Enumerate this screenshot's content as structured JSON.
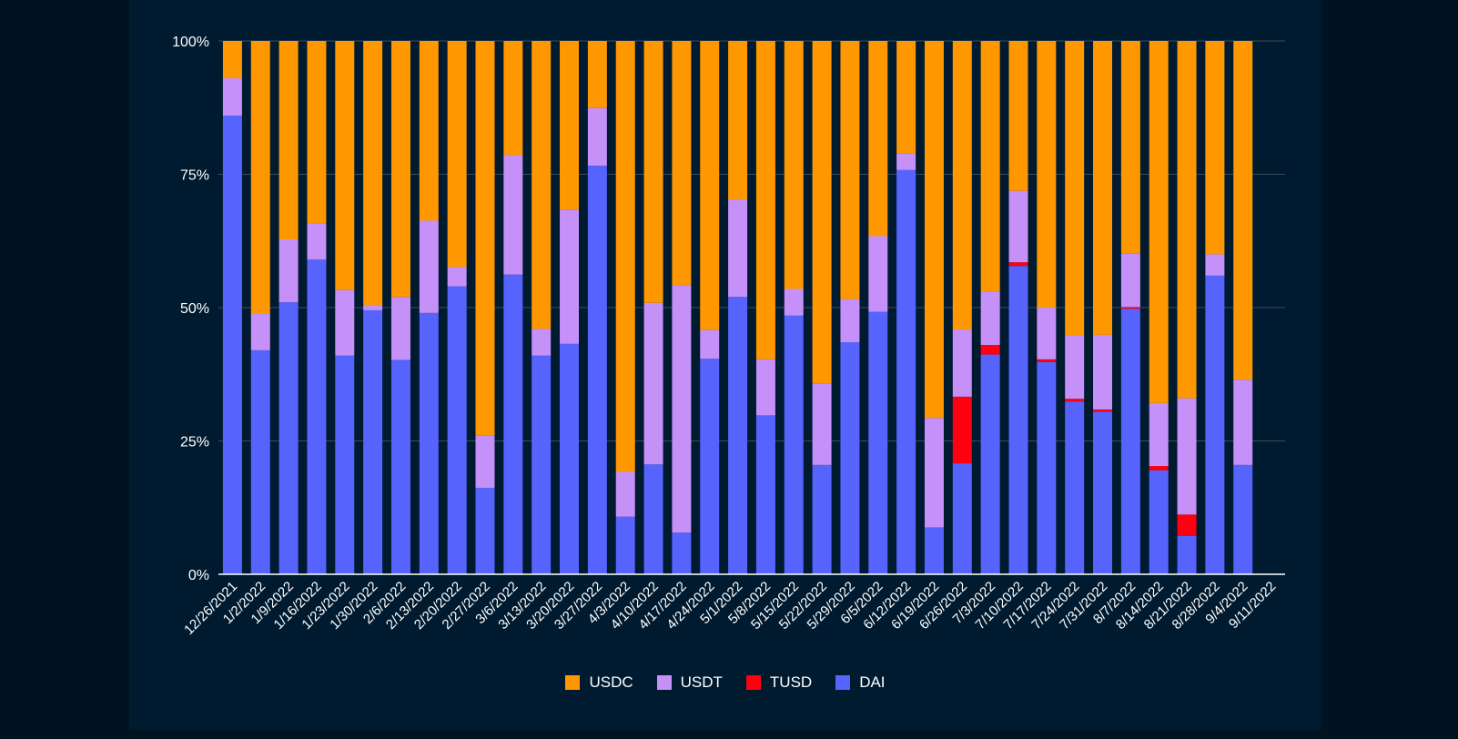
{
  "chart_data": {
    "type": "bar",
    "stacked": true,
    "normalized": true,
    "title": "",
    "xlabel": "",
    "ylabel": "",
    "ylim": [
      0,
      100
    ],
    "y_ticks": [
      0,
      25,
      50,
      75,
      100
    ],
    "y_tick_labels": [
      "0%",
      "25%",
      "50%",
      "75%",
      "100%"
    ],
    "grid": true,
    "legend_position": "bottom",
    "categories": [
      "12/26/2021",
      "1/2/2022",
      "1/9/2022",
      "1/16/2022",
      "1/23/2022",
      "1/30/2022",
      "2/6/2022",
      "2/13/2022",
      "2/20/2022",
      "2/27/2022",
      "3/6/2022",
      "3/13/2022",
      "3/20/2022",
      "3/27/2022",
      "4/3/2022",
      "4/10/2022",
      "4/17/2022",
      "4/24/2022",
      "5/1/2022",
      "5/8/2022",
      "5/15/2022",
      "5/22/2022",
      "5/29/2022",
      "6/5/2022",
      "6/12/2022",
      "6/19/2022",
      "6/26/2022",
      "7/3/2022",
      "7/10/2022",
      "7/17/2022",
      "7/24/2022",
      "7/31/2022",
      "8/7/2022",
      "8/14/2022",
      "8/21/2022",
      "8/28/2022",
      "9/4/2022",
      "9/11/2022"
    ],
    "series": [
      {
        "name": "DAI",
        "color": "#5664fd",
        "values": [
          86,
          42,
          51,
          59,
          41,
          49.5,
          40.2,
          49,
          54,
          16.2,
          56.2,
          41,
          43.2,
          76.6,
          10.8,
          20.6,
          7.8,
          40.4,
          52,
          29.8,
          48.5,
          20.5,
          43.5,
          49.2,
          75.8,
          8.8,
          20.8,
          41.2,
          57.8,
          39.8,
          32.4,
          30.5,
          49.8,
          19.5,
          7.2,
          56,
          20.5,
          0
        ]
      },
      {
        "name": "TUSD",
        "color": "#ff0010",
        "values": [
          0,
          0,
          0,
          0,
          0,
          0,
          0,
          0,
          0,
          0,
          0,
          0,
          0,
          0,
          0,
          0,
          0,
          0,
          0,
          0,
          0,
          0,
          0,
          0,
          0,
          0,
          12.5,
          1.8,
          0.7,
          0.5,
          0.5,
          0.4,
          0.3,
          0.8,
          4,
          0,
          0,
          0
        ]
      },
      {
        "name": "USDT",
        "color": "#c591f9",
        "values": [
          7,
          6.8,
          11.8,
          6.8,
          12.3,
          1,
          11.8,
          17.3,
          3.6,
          9.8,
          22.4,
          5,
          25.2,
          10.8,
          8.4,
          30.3,
          46.4,
          5.4,
          18.3,
          10.5,
          5,
          15.3,
          8.1,
          14.2,
          3.1,
          20.5,
          12.6,
          10,
          13.4,
          9.7,
          11.9,
          14,
          10.1,
          11.8,
          21.8,
          4,
          16,
          0
        ]
      },
      {
        "name": "USDC",
        "color": "#ff9800",
        "values": [
          7,
          51.2,
          37.2,
          34.2,
          46.7,
          49.5,
          48,
          33.7,
          42.4,
          74,
          21.4,
          54,
          31.6,
          12.6,
          80.8,
          49.1,
          45.8,
          54.2,
          29.7,
          59.7,
          46.5,
          64.2,
          48.4,
          36.6,
          21.1,
          70.7,
          54.1,
          47,
          28.1,
          50,
          55.2,
          55.1,
          39.8,
          67.9,
          67,
          40,
          63.5,
          0
        ]
      }
    ],
    "legend": [
      "USDC",
      "USDT",
      "TUSD",
      "DAI"
    ]
  },
  "theme": {
    "panel_bg": "#001b30",
    "page_bg": "#001320",
    "grid_color": "#3a4a5a",
    "axis_color": "#ffffff",
    "text_color": "#ffffff"
  }
}
